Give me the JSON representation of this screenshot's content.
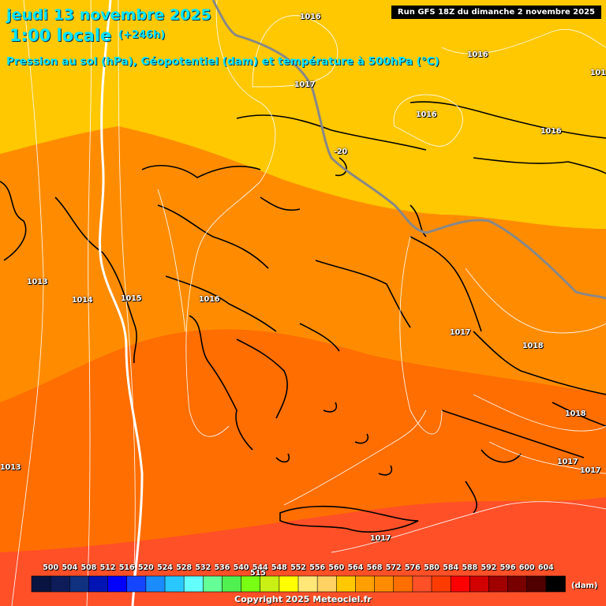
{
  "header": {
    "date": "jeudi 13 novembre 2025",
    "hour": "1:00 locale",
    "lead": "(+246h)",
    "subtitle": "Pression au sol (hPa), Géopotentiel (dam) et température à 500hPa (°C)",
    "run": "Run GFS 18Z du dimanche 2 novembre 2025"
  },
  "isobar_labels": [
    "1016",
    "1016",
    "101",
    "1017",
    "1016",
    "1016",
    "1013",
    "1014",
    "1015",
    "1016",
    "1017",
    "1018",
    "1018",
    "1017",
    "1017",
    "1013",
    "1017",
    "515"
  ],
  "temperature_label": "-20",
  "scale": {
    "values": [
      "500",
      "504",
      "508",
      "512",
      "516",
      "520",
      "524",
      "528",
      "532",
      "536",
      "540",
      "544",
      "548",
      "552",
      "556",
      "560",
      "564",
      "568",
      "572",
      "576",
      "580",
      "584",
      "588",
      "592",
      "596",
      "600",
      "604"
    ],
    "colors": [
      "#0a1440",
      "#0e1c5a",
      "#103080",
      "#0014b4",
      "#0000ff",
      "#1446ff",
      "#1a8cff",
      "#28c8ff",
      "#64ffff",
      "#64ff96",
      "#50f050",
      "#78ff14",
      "#c8f014",
      "#ffff00",
      "#ffe878",
      "#ffd264",
      "#ffc800",
      "#ffa000",
      "#ff8c00",
      "#ff6e00",
      "#ff5028",
      "#ff3c00",
      "#ff0000",
      "#d20000",
      "#a00000",
      "#780000",
      "#500000",
      "#000000"
    ],
    "unit": "(dam)"
  },
  "copyright": "Copyright 2025 Meteociel.fr"
}
